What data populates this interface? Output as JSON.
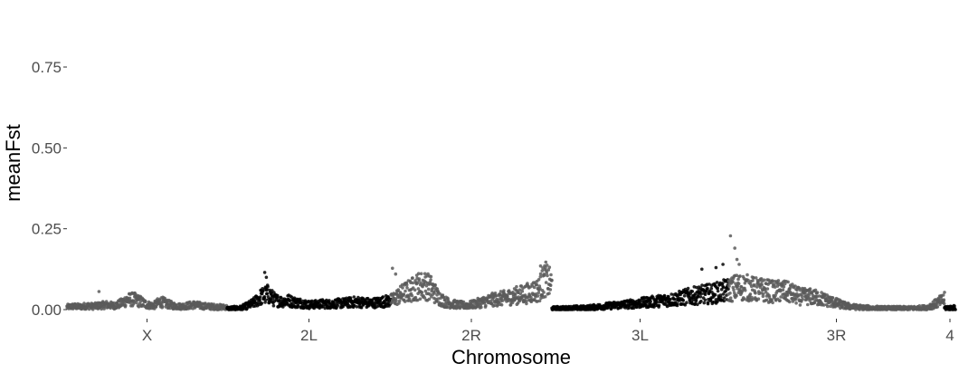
{
  "chart_data": {
    "type": "scatter",
    "title": "",
    "xlabel": "Chromosome",
    "ylabel": "meanFst",
    "ylim": [
      0,
      0.8
    ],
    "y_ticks": [
      {
        "value": 0.0,
        "label": "0.00"
      },
      {
        "value": 0.25,
        "label": "0.25"
      },
      {
        "value": 0.5,
        "label": "0.50"
      },
      {
        "value": 0.75,
        "label": "0.75"
      }
    ],
    "grid": false,
    "legend": "none",
    "point_colors": [
      "#5a5a5a",
      "#000000"
    ],
    "chromosomes": [
      {
        "name": "X",
        "tick_label": "X",
        "color": "#5a5a5a",
        "profile": [
          0.008,
          0.01,
          0.009,
          0.012,
          0.01,
          0.013,
          0.015,
          0.012,
          0.018,
          0.03,
          0.032,
          0.025,
          0.015,
          0.012,
          0.025,
          0.018,
          0.012,
          0.01,
          0.012,
          0.015,
          0.012,
          0.01,
          0.009,
          0.008,
          0.007
        ],
        "outliers": [
          [
            0.2,
            0.056
          ],
          [
            0.45,
            0.04
          ]
        ]
      },
      {
        "name": "2L",
        "tick_label": "2L",
        "color": "#000000",
        "profile": [
          0.003,
          0.004,
          0.005,
          0.012,
          0.022,
          0.04,
          0.048,
          0.03,
          0.025,
          0.028,
          0.022,
          0.02,
          0.015,
          0.016,
          0.018,
          0.017,
          0.019,
          0.02,
          0.022,
          0.024,
          0.022,
          0.02,
          0.022,
          0.025,
          0.028
        ],
        "outliers": [
          [
            0.23,
            0.115
          ],
          [
            0.24,
            0.1
          ]
        ]
      },
      {
        "name": "2R",
        "tick_label": "2R",
        "color": "#5a5a5a",
        "profile": [
          0.028,
          0.04,
          0.052,
          0.06,
          0.072,
          0.075,
          0.066,
          0.04,
          0.025,
          0.018,
          0.015,
          0.013,
          0.015,
          0.02,
          0.025,
          0.03,
          0.033,
          0.036,
          0.04,
          0.045,
          0.048,
          0.055,
          0.06,
          0.095,
          0.075
        ],
        "outliers": [
          [
            0.01,
            0.128
          ],
          [
            0.03,
            0.11
          ],
          [
            0.93,
            0.135
          ],
          [
            0.94,
            0.12
          ]
        ]
      },
      {
        "name": "3L",
        "tick_label": "3L",
        "color": "#000000",
        "profile": [
          0.003,
          0.004,
          0.004,
          0.005,
          0.005,
          0.006,
          0.008,
          0.01,
          0.012,
          0.014,
          0.016,
          0.018,
          0.02,
          0.023,
          0.025,
          0.028,
          0.03,
          0.033,
          0.038,
          0.042,
          0.045,
          0.048,
          0.05,
          0.055,
          0.06
        ],
        "outliers": [
          [
            0.85,
            0.125
          ],
          [
            0.93,
            0.13
          ],
          [
            0.97,
            0.14
          ]
        ]
      },
      {
        "name": "3R",
        "tick_label": "3R",
        "color": "#5a5a5a",
        "profile": [
          0.06,
          0.07,
          0.068,
          0.062,
          0.06,
          0.055,
          0.058,
          0.05,
          0.04,
          0.04,
          0.036,
          0.028,
          0.02,
          0.012,
          0.008,
          0.006,
          0.005,
          0.004,
          0.004,
          0.004,
          0.004,
          0.005,
          0.006,
          0.018,
          0.032
        ],
        "outliers": [
          [
            0.01,
            0.228
          ],
          [
            0.03,
            0.19
          ],
          [
            0.04,
            0.155
          ],
          [
            0.05,
            0.14
          ]
        ]
      },
      {
        "name": "4",
        "tick_label": "4",
        "color": "#000000",
        "profile": [
          0.005,
          0.006,
          0.005,
          0.006,
          0.005
        ],
        "outliers": []
      }
    ]
  }
}
